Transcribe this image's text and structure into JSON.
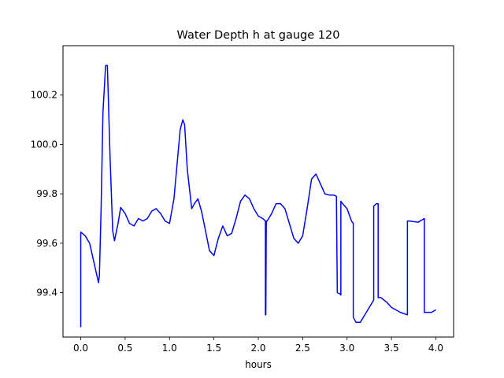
{
  "chart_data": {
    "type": "line",
    "title": "Water Depth h at gauge 120",
    "xlabel": "hours",
    "ylabel": "",
    "xlim": [
      -0.2,
      4.2
    ],
    "ylim": [
      99.22,
      100.4
    ],
    "xticks": [
      0.0,
      0.5,
      1.0,
      1.5,
      2.0,
      2.5,
      3.0,
      3.5,
      4.0
    ],
    "xtick_labels": [
      "0.0",
      "0.5",
      "1.0",
      "1.5",
      "2.0",
      "2.5",
      "3.0",
      "3.5",
      "4.0"
    ],
    "yticks": [
      99.4,
      99.6,
      99.8,
      100.0,
      100.2
    ],
    "ytick_labels": [
      "99.4",
      "99.6",
      "99.8",
      "100.0",
      "100.2"
    ],
    "grid": false,
    "line_color": "#0000ff",
    "series": [
      {
        "name": "",
        "x": [
          0.0,
          0.0,
          0.05,
          0.1,
          0.15,
          0.2,
          0.21,
          0.23,
          0.25,
          0.28,
          0.3,
          0.33,
          0.36,
          0.38,
          0.42,
          0.45,
          0.48,
          0.5,
          0.55,
          0.6,
          0.65,
          0.7,
          0.75,
          0.8,
          0.85,
          0.9,
          0.95,
          1.0,
          1.05,
          1.08,
          1.12,
          1.15,
          1.17,
          1.2,
          1.25,
          1.28,
          1.32,
          1.36,
          1.4,
          1.45,
          1.5,
          1.55,
          1.6,
          1.65,
          1.7,
          1.75,
          1.8,
          1.85,
          1.9,
          1.95,
          2.0,
          2.05,
          2.08,
          2.08,
          2.085,
          2.09,
          2.1,
          2.15,
          2.2,
          2.25,
          2.3,
          2.35,
          2.4,
          2.45,
          2.5,
          2.55,
          2.6,
          2.65,
          2.7,
          2.75,
          2.8,
          2.85,
          2.88,
          2.89,
          2.89,
          2.92,
          2.93,
          2.93,
          2.95,
          3.0,
          3.05,
          3.07,
          3.07,
          3.1,
          3.15,
          3.2,
          3.25,
          3.3,
          3.3,
          3.33,
          3.34,
          3.35,
          3.35,
          3.38,
          3.45,
          3.5,
          3.55,
          3.6,
          3.68,
          3.68,
          3.7,
          3.8,
          3.87,
          3.87,
          3.9,
          3.95,
          4.0
        ],
        "y": [
          99.26,
          99.645,
          99.63,
          99.6,
          99.52,
          99.44,
          99.47,
          99.75,
          100.13,
          100.32,
          100.32,
          99.95,
          99.65,
          99.61,
          99.68,
          99.745,
          99.73,
          99.72,
          99.68,
          99.67,
          99.7,
          99.69,
          99.7,
          99.73,
          99.74,
          99.72,
          99.69,
          99.68,
          99.78,
          99.9,
          100.06,
          100.1,
          100.08,
          99.9,
          99.74,
          99.76,
          99.78,
          99.73,
          99.66,
          99.57,
          99.55,
          99.62,
          99.67,
          99.63,
          99.64,
          99.7,
          99.77,
          99.795,
          99.78,
          99.74,
          99.71,
          99.7,
          99.69,
          99.31,
          99.31,
          99.69,
          99.69,
          99.72,
          99.76,
          99.76,
          99.74,
          99.68,
          99.62,
          99.6,
          99.63,
          99.74,
          99.86,
          99.88,
          99.84,
          99.8,
          99.795,
          99.795,
          99.79,
          99.4,
          99.4,
          99.395,
          99.39,
          99.77,
          99.76,
          99.74,
          99.69,
          99.68,
          99.3,
          99.28,
          99.28,
          99.31,
          99.34,
          99.37,
          99.75,
          99.76,
          99.76,
          99.76,
          99.38,
          99.38,
          99.36,
          99.34,
          99.33,
          99.32,
          99.31,
          99.69,
          99.69,
          99.685,
          99.7,
          99.32,
          99.32,
          99.32,
          99.33
        ]
      }
    ]
  }
}
